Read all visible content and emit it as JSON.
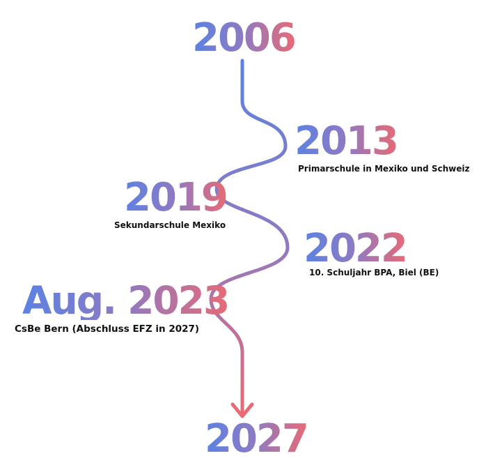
{
  "colors": {
    "gradient_start": "#5b82e2",
    "gradient_mid": "#8f7ac2",
    "gradient_end": "#e86a75"
  },
  "milestones": [
    {
      "year": "2006",
      "caption": ""
    },
    {
      "year": "2013",
      "caption": "Primarschule in Mexiko und Schweiz"
    },
    {
      "year": "2019",
      "caption": "Sekundarschule Mexiko"
    },
    {
      "year": "2022",
      "caption": "10. Schuljahr BPA, Biel (BE)"
    },
    {
      "year": "Aug. 2023",
      "caption": "CsBe Bern (Abschluss EFZ in 2027)"
    },
    {
      "year": "2027",
      "caption": ""
    }
  ]
}
